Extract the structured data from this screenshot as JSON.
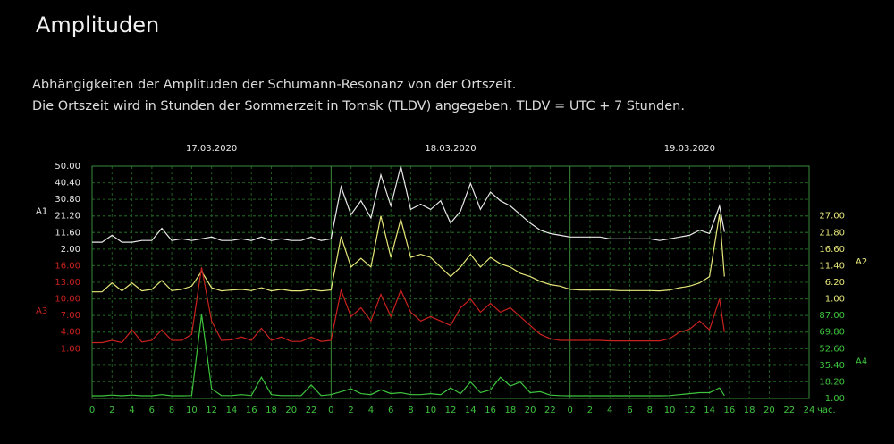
{
  "title": "Amplituden",
  "description": [
    "Abhängigkeiten der Amplituden der Schumann-Resonanz von der Ortszeit.",
    "Die Ortszeit wird in Stunden der Sommerzeit in Tomsk (TLDV) angegeben. TLDV = UTC + 7 Stunden."
  ],
  "chart_data": {
    "type": "line",
    "grid": true,
    "dates": [
      {
        "value": 12,
        "label": "17.03.2020"
      },
      {
        "value": 36,
        "label": "18.03.2020"
      },
      {
        "value": 60,
        "label": "19.03.2020"
      }
    ],
    "x_unit": "час.",
    "xlim": [
      0,
      72
    ],
    "xticks": [
      {
        "value": 0,
        "label": "0"
      },
      {
        "value": 2,
        "label": "2"
      },
      {
        "value": 4,
        "label": "4"
      },
      {
        "value": 6,
        "label": "6"
      },
      {
        "value": 8,
        "label": "8"
      },
      {
        "value": 10,
        "label": "10"
      },
      {
        "value": 12,
        "label": "12"
      },
      {
        "value": 14,
        "label": "14"
      },
      {
        "value": 16,
        "label": "16"
      },
      {
        "value": 18,
        "label": "18"
      },
      {
        "value": 20,
        "label": "20"
      },
      {
        "value": 22,
        "label": "22"
      },
      {
        "value": 24,
        "label": "0"
      },
      {
        "value": 26,
        "label": "2"
      },
      {
        "value": 28,
        "label": "4"
      },
      {
        "value": 30,
        "label": "6"
      },
      {
        "value": 32,
        "label": "8"
      },
      {
        "value": 34,
        "label": "10"
      },
      {
        "value": 36,
        "label": "12"
      },
      {
        "value": 38,
        "label": "14"
      },
      {
        "value": 40,
        "label": "16"
      },
      {
        "value": 42,
        "label": "18"
      },
      {
        "value": 44,
        "label": "20"
      },
      {
        "value": 46,
        "label": "22"
      },
      {
        "value": 48,
        "label": "0"
      },
      {
        "value": 50,
        "label": "2"
      },
      {
        "value": 52,
        "label": "4"
      },
      {
        "value": 54,
        "label": "6"
      },
      {
        "value": 56,
        "label": "8"
      },
      {
        "value": 58,
        "label": "10"
      },
      {
        "value": 60,
        "label": "12"
      },
      {
        "value": 62,
        "label": "14"
      },
      {
        "value": 64,
        "label": "16"
      },
      {
        "value": 66,
        "label": "18"
      },
      {
        "value": 68,
        "label": "20"
      },
      {
        "value": 70,
        "label": "22"
      },
      {
        "value": 72,
        "label": "24"
      }
    ],
    "x": [
      0,
      1,
      2,
      3,
      4,
      5,
      6,
      7,
      8,
      9,
      10,
      11,
      12,
      13,
      14,
      15,
      16,
      17,
      18,
      19,
      20,
      21,
      22,
      23,
      24,
      25,
      26,
      27,
      28,
      29,
      30,
      31,
      32,
      33,
      34,
      35,
      36,
      37,
      38,
      39,
      40,
      41,
      42,
      43,
      44,
      45,
      46,
      47,
      48,
      49,
      50,
      51,
      52,
      53,
      54,
      55,
      56,
      57,
      58,
      59,
      60,
      61,
      62,
      63,
      63.5
    ],
    "series": [
      {
        "name": "A1",
        "color": "#e8e8e8",
        "axis": "left",
        "ylim": [
          2,
          50
        ],
        "yticks": [
          {
            "value": 50,
            "label": "50.00"
          },
          {
            "value": 40.4,
            "label": "40.40"
          },
          {
            "value": 30.8,
            "label": "30.80"
          },
          {
            "value": 21.2,
            "label": "21.20"
          },
          {
            "value": 11.6,
            "label": "11.60"
          },
          {
            "value": 2,
            "label": "2.00"
          }
        ],
        "values": [
          6,
          6,
          10,
          6,
          6,
          7,
          7,
          14,
          7,
          8,
          7,
          8,
          9,
          7,
          7,
          8,
          7,
          9,
          7,
          8,
          7,
          7,
          9,
          7,
          8,
          38,
          22,
          30,
          20,
          45,
          27,
          50,
          25,
          28,
          25,
          30,
          17,
          24,
          40,
          25,
          35,
          30,
          27,
          22,
          17,
          13,
          11,
          10,
          9,
          9,
          9,
          9,
          8,
          8,
          8,
          8,
          8,
          7,
          8,
          9,
          10,
          13,
          11,
          27,
          12
        ]
      },
      {
        "name": "A2",
        "color": "#e6e67a",
        "axis": "right",
        "ylim": [
          1,
          27
        ],
        "yticks": [
          {
            "value": 27,
            "label": "27.00"
          },
          {
            "value": 21.8,
            "label": "21.80"
          },
          {
            "value": 16.6,
            "label": "16.60"
          },
          {
            "value": 11.4,
            "label": "11.40"
          },
          {
            "value": 6.2,
            "label": "6.20"
          },
          {
            "value": 1,
            "label": "1.00"
          }
        ],
        "values": [
          3.2,
          3.2,
          6,
          3.5,
          6,
          3.5,
          4,
          6.8,
          3.6,
          4,
          5,
          9.6,
          4.5,
          3.5,
          3.8,
          4,
          3.6,
          4.5,
          3.5,
          4,
          3.5,
          3.5,
          4,
          3.5,
          3.8,
          20.6,
          11,
          13.7,
          11,
          27,
          14,
          26,
          14,
          15,
          14,
          11,
          8,
          11,
          15,
          11,
          14,
          12,
          11,
          9,
          8,
          6.5,
          5.5,
          5,
          4,
          3.8,
          3.8,
          3.8,
          3.8,
          3.6,
          3.6,
          3.6,
          3.6,
          3.5,
          3.8,
          4.5,
          5,
          6,
          8,
          27.6,
          8
        ]
      },
      {
        "name": "A3",
        "color": "#c8221f",
        "axis": "left",
        "ylim": [
          1,
          16
        ],
        "yticks": [
          {
            "value": 16,
            "label": "16.00"
          },
          {
            "value": 13,
            "label": "13.00"
          },
          {
            "value": 10,
            "label": "10.00"
          },
          {
            "value": 7,
            "label": "7.00"
          },
          {
            "value": 4,
            "label": "4.00"
          },
          {
            "value": 1,
            "label": "1.00"
          }
        ],
        "values": [
          2.1,
          2.1,
          2.5,
          2.1,
          4.4,
          2.2,
          2.5,
          4.4,
          2.5,
          2.5,
          3.6,
          15.7,
          6,
          2.5,
          2.6,
          3.1,
          2.5,
          4.7,
          2.5,
          3.1,
          2.3,
          2.3,
          3.1,
          2.3,
          2.5,
          11.6,
          6.8,
          8.4,
          6,
          10.8,
          6.8,
          11.6,
          7.6,
          6,
          6.8,
          6,
          5.2,
          8.4,
          10,
          7.6,
          9.2,
          7.6,
          8.4,
          6.8,
          5.2,
          3.6,
          2.8,
          2.5,
          2.5,
          2.5,
          2.5,
          2.5,
          2.4,
          2.4,
          2.4,
          2.4,
          2.4,
          2.4,
          2.8,
          4,
          4.5,
          6,
          4.4,
          10,
          4
        ]
      },
      {
        "name": "A4",
        "color": "#3ec43e",
        "axis": "right",
        "ylim": [
          1,
          87
        ],
        "yticks": [
          {
            "value": 87,
            "label": "87.00"
          },
          {
            "value": 69.8,
            "label": "69.80"
          },
          {
            "value": 52.6,
            "label": "52.60"
          },
          {
            "value": 35.4,
            "label": "35.40"
          },
          {
            "value": 18.2,
            "label": "18.20"
          },
          {
            "value": 1,
            "label": "1.00"
          }
        ],
        "values": [
          3.8,
          3.8,
          4.5,
          3.8,
          4.5,
          3.8,
          3.8,
          5,
          3.8,
          3.8,
          4,
          88,
          11,
          4,
          4,
          5,
          4,
          23,
          5,
          4,
          4,
          4,
          15,
          4,
          5,
          8,
          11,
          6,
          5,
          10,
          6,
          7,
          5,
          5,
          6,
          5,
          12,
          6,
          18,
          7,
          10,
          23,
          14,
          18,
          7,
          8,
          4.5,
          4,
          3.8,
          3.8,
          3.8,
          3.8,
          3.8,
          3.8,
          3.8,
          3.8,
          3.8,
          3.8,
          4,
          5,
          6,
          7,
          7,
          12,
          4
        ]
      }
    ]
  }
}
